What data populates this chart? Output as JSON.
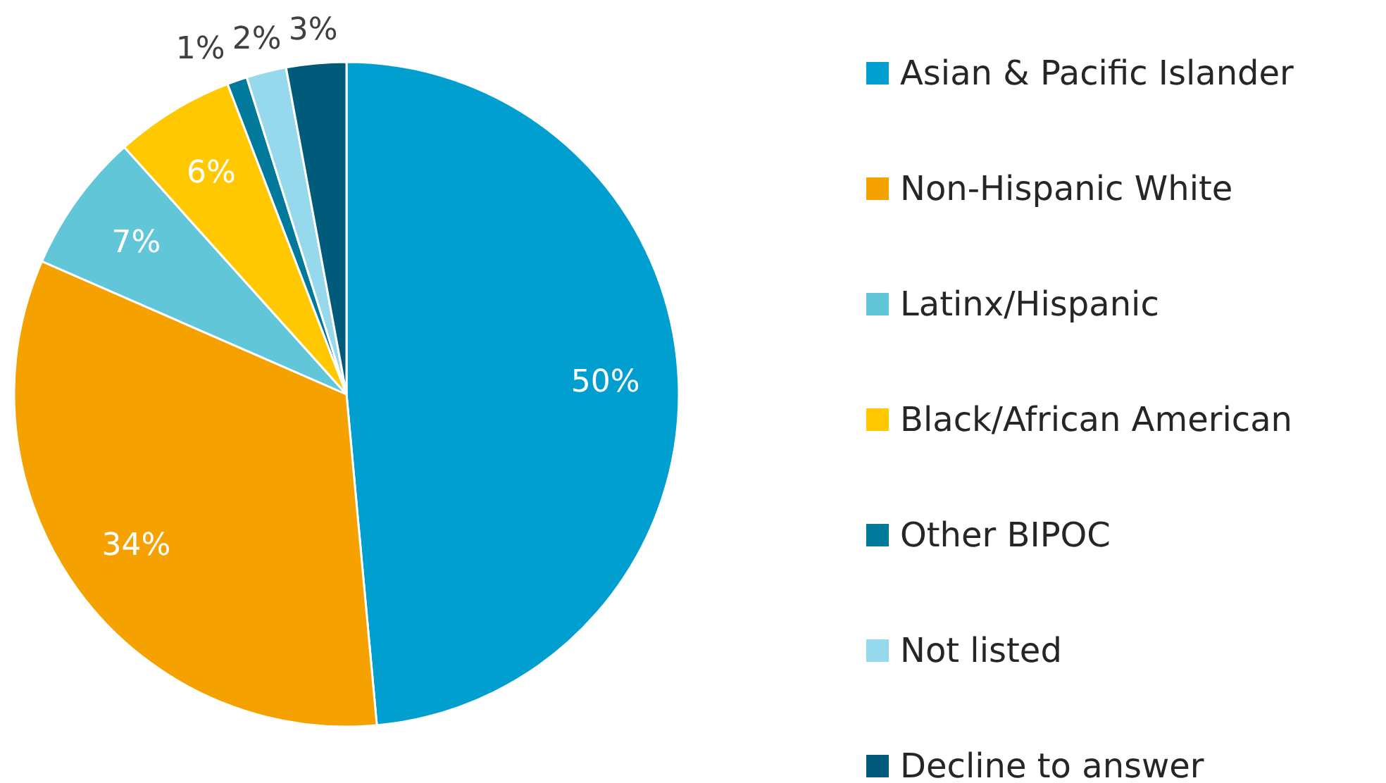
{
  "chart_data": {
    "type": "pie",
    "categories": [
      "Asian & Pacific Islander",
      "Non-Hispanic White",
      "Latinx/Hispanic",
      "Black/African American",
      "Other BIPOC",
      "Not listed",
      "Decline to answer"
    ],
    "values": [
      50,
      34,
      7,
      6,
      1,
      2,
      3
    ],
    "colors": [
      "#009fd0",
      "#f5a100",
      "#62c6d9",
      "#ffc800",
      "#00799a",
      "#97d9ec",
      "#005a7a"
    ],
    "value_labels": [
      "50%",
      "34%",
      "7%",
      "6%",
      "1%",
      "2%",
      "3%"
    ],
    "legend": "right"
  }
}
